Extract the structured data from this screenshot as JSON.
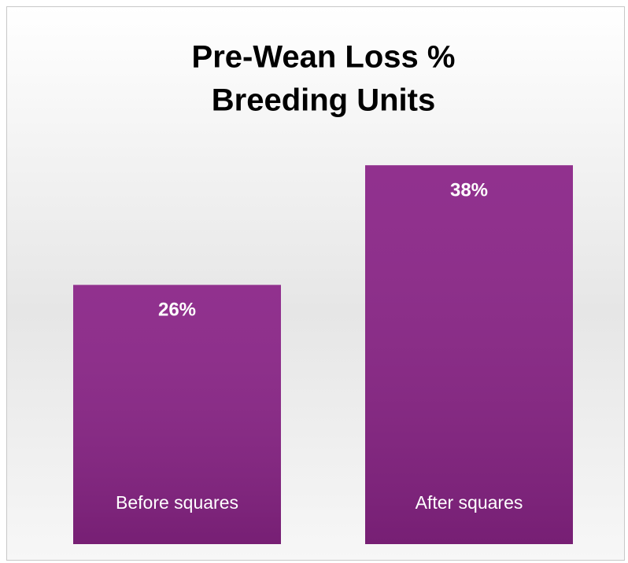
{
  "chart_data": {
    "type": "bar",
    "title": [
      "Pre-Wean Loss %",
      "Breeding Units"
    ],
    "categories": [
      "Before squares",
      "After squares"
    ],
    "values": [
      26,
      38
    ],
    "value_labels": [
      "26%",
      "38%"
    ],
    "color": "#8a2487"
  }
}
